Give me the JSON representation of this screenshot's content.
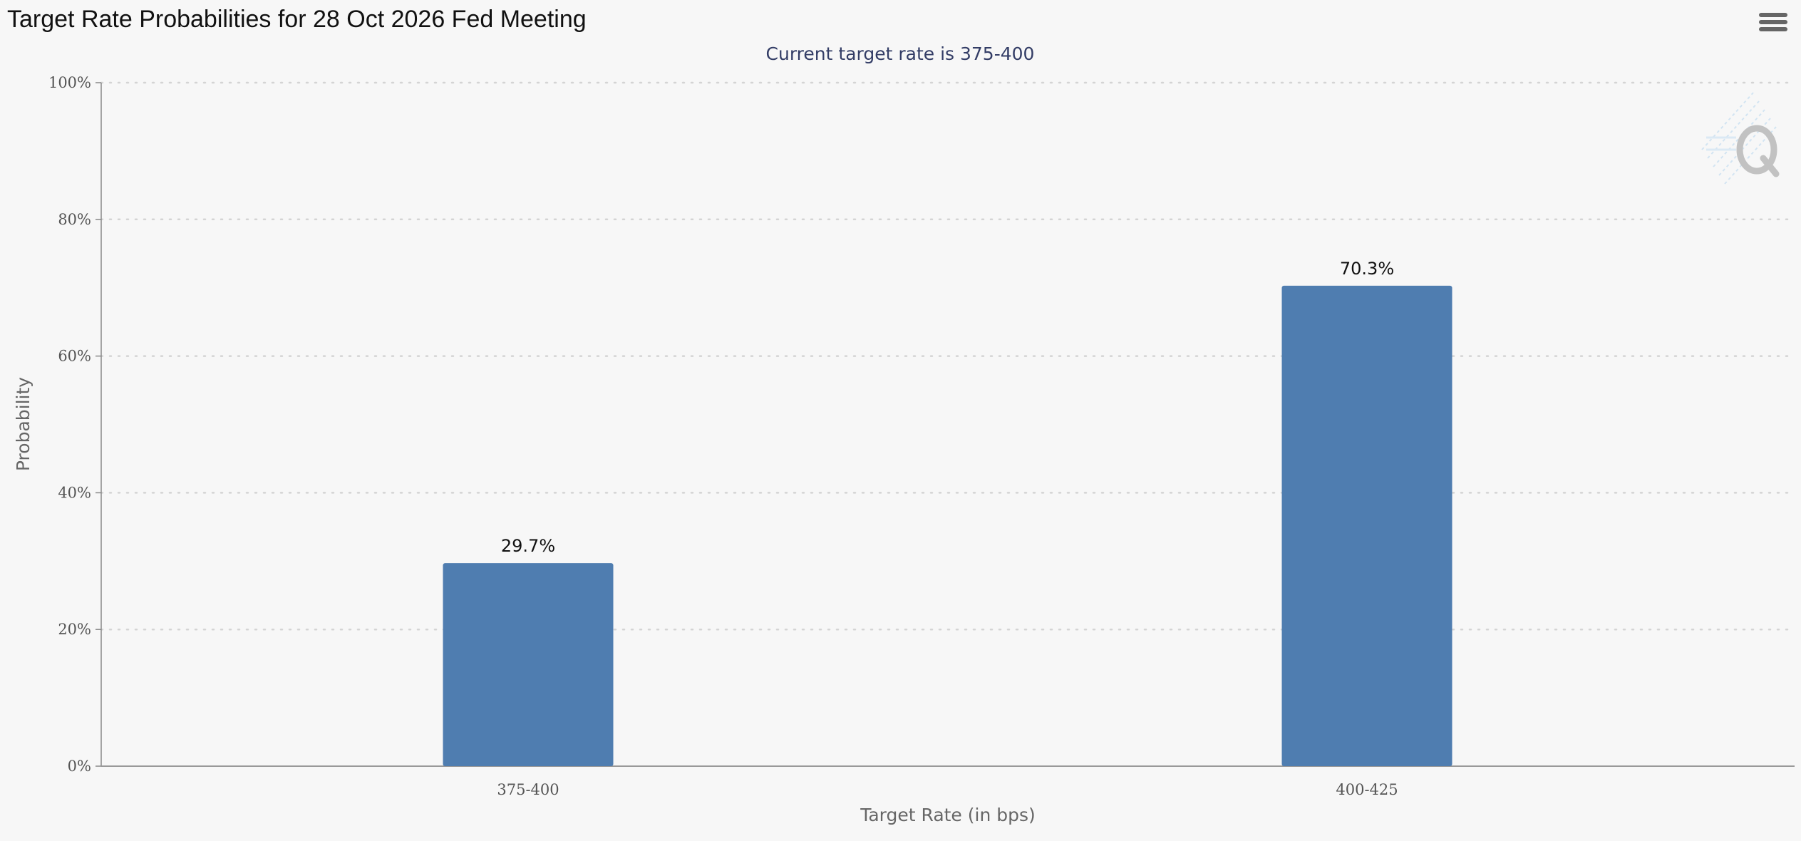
{
  "header": {
    "title": "Target Rate Probabilities for 28 Oct 2026 Fed Meeting"
  },
  "chart_data": {
    "type": "bar",
    "title": "Target Rate Probabilities for 28 Oct 2026 Fed Meeting",
    "subtitle": "Current target rate is 375-400",
    "xlabel": "Target Rate (in bps)",
    "ylabel": "Probability",
    "categories": [
      "375-400",
      "400-425"
    ],
    "values": [
      29.7,
      70.3
    ],
    "data_labels": [
      "29.7%",
      "70.3%"
    ],
    "ylim": [
      0,
      100
    ],
    "yticks": [
      "0%",
      "20%",
      "40%",
      "60%",
      "80%",
      "100%"
    ],
    "grid": true,
    "legend": "none",
    "bar_color": "#4f7db0"
  },
  "watermark": {
    "icon": "q-logo-icon"
  },
  "toolbar": {
    "menu_icon": "hamburger-menu-icon"
  }
}
